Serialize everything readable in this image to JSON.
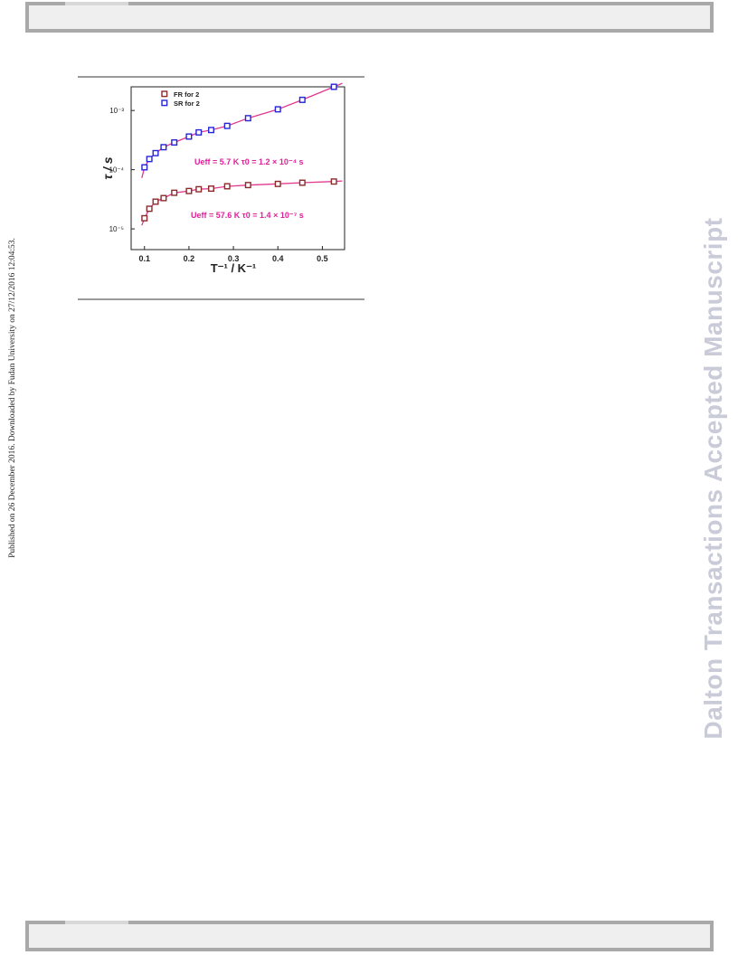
{
  "side": {
    "published": "Published on 26 December 2016. Downloaded by Fudan University on 27/12/2016 12:04:53.",
    "journal": "Dalton Transactions Accepted Manuscript"
  },
  "colors": {
    "fr": "#8a2a2a",
    "sr": "#2424d8",
    "fit": "#e0398e",
    "annotation": "#e0209a"
  },
  "chart_data": {
    "type": "scatter",
    "xlabel": "T⁻¹ / K⁻¹",
    "ylabel": "τ / s",
    "xlim": [
      0.07,
      0.55
    ],
    "ylim": [
      -5.35,
      -2.6
    ],
    "y_scale": "log",
    "x_ticks": [
      "0.1",
      "0.2",
      "0.3",
      "0.4",
      "0.5"
    ],
    "y_ticks": [
      "10⁻³",
      "10⁻⁴",
      "10⁻⁵"
    ],
    "legend": {
      "position": "top-left"
    },
    "series": [
      {
        "name": "FR for 2",
        "marker": "square",
        "x": [
          0.1,
          0.111,
          0.125,
          0.143,
          0.167,
          0.2,
          0.222,
          0.25,
          0.286,
          0.333,
          0.4,
          0.455,
          0.526
        ],
        "log10_tau": [
          -4.82,
          -4.66,
          -4.54,
          -4.48,
          -4.39,
          -4.36,
          -4.33,
          -4.32,
          -4.28,
          -4.26,
          -4.24,
          -4.22,
          -4.2
        ]
      },
      {
        "name": "SR for 2",
        "marker": "square",
        "x": [
          0.1,
          0.111,
          0.125,
          0.143,
          0.167,
          0.2,
          0.222,
          0.25,
          0.286,
          0.333,
          0.4,
          0.455,
          0.526
        ],
        "log10_tau": [
          -3.96,
          -3.82,
          -3.72,
          -3.62,
          -3.54,
          -3.44,
          -3.37,
          -3.33,
          -3.26,
          -3.13,
          -2.98,
          -2.82,
          -2.6
        ]
      }
    ],
    "annotations": {
      "sr_fit": "Ueff = 5.7 K   τ0 = 1.2 × 10⁻⁴ s",
      "fr_fit": "Ueff = 57.6 K   τ0 = 1.4 × 10⁻⁷ s"
    }
  }
}
